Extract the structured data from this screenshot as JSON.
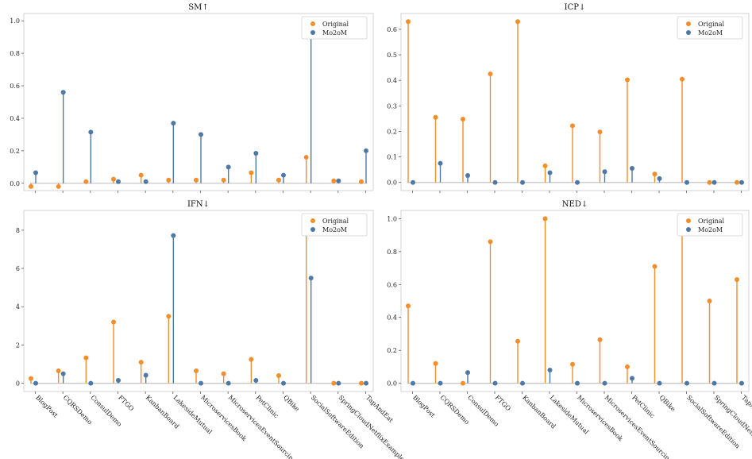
{
  "chart_data": [
    {
      "type": "stem",
      "title": "SM↑",
      "categories": [
        "BlogPost",
        "CQRSDemo",
        "ConsulDemo",
        "FTGO",
        "KanbanBoard",
        "LakesideMutual",
        "MicroservicesBook",
        "MicroservicesEventSourcing",
        "PetClinic",
        "QBike",
        "SocialSoftwareEdition",
        "SpringCloudNetflixExample",
        "TapAndEat"
      ],
      "series": [
        {
          "name": "Original",
          "color": "#f28e2b",
          "values": [
            -0.02,
            -0.02,
            0.01,
            0.025,
            0.05,
            0.02,
            0.02,
            0.02,
            0.065,
            0.02,
            0.16,
            0.015,
            0.01
          ]
        },
        {
          "name": "Mo2oM",
          "color": "#4e79a7",
          "values": [
            0.065,
            0.56,
            0.315,
            0.01,
            0.01,
            0.37,
            0.3,
            0.1,
            0.185,
            0.05,
            1.0,
            0.015,
            0.2
          ]
        }
      ],
      "ylim": [
        -0.045,
        1.045
      ],
      "yticks": [
        "0.0",
        "0.2",
        "0.4",
        "0.6",
        "0.8",
        "1.0"
      ],
      "legend": "top-right",
      "show_xlabels": false
    },
    {
      "type": "stem",
      "title": "ICP↓",
      "categories": [
        "BlogPost",
        "CQRSDemo",
        "ConsulDemo",
        "FTGO",
        "KanbanBoard",
        "LakesideMutual",
        "MicroservicesBook",
        "MicroservicesEventSourcing",
        "PetClinic",
        "QBike",
        "SocialSoftwareEdition",
        "SpringCloudNetflixExample",
        "TapAndEat"
      ],
      "series": [
        {
          "name": "Original",
          "color": "#f28e2b",
          "values": [
            0.63,
            0.255,
            0.248,
            0.425,
            0.63,
            0.065,
            0.222,
            0.198,
            0.402,
            0.033,
            0.405,
            0.0,
            0.0
          ]
        },
        {
          "name": "Mo2oM",
          "color": "#4e79a7",
          "values": [
            0.0,
            0.075,
            0.027,
            0.0,
            0.0,
            0.038,
            0.0,
            0.042,
            0.055,
            0.015,
            0.0,
            0.0,
            0.0
          ]
        }
      ],
      "ylim": [
        -0.032,
        0.662
      ],
      "yticks": [
        "0.0",
        "0.1",
        "0.2",
        "0.3",
        "0.4",
        "0.5",
        "0.6"
      ],
      "legend": "top-right",
      "show_xlabels": false
    },
    {
      "type": "stem",
      "title": "IFN↓",
      "categories": [
        "BlogPost",
        "CQRSDemo",
        "ConsulDemo",
        "FTGO",
        "KanbanBoard",
        "LakesideMutual",
        "MicroservicesBook",
        "MicroservicesEventSourcing",
        "PetClinic",
        "QBike",
        "SocialSoftwareEdition",
        "SpringCloudNetflixExample",
        "TapAndEat"
      ],
      "series": [
        {
          "name": "Original",
          "color": "#f28e2b",
          "values": [
            0.25,
            0.65,
            1.33,
            3.2,
            1.1,
            3.5,
            0.65,
            0.5,
            1.25,
            0.4,
            8.6,
            0.0,
            0.0
          ]
        },
        {
          "name": "Mo2oM",
          "color": "#4e79a7",
          "values": [
            0.0,
            0.5,
            0.0,
            0.15,
            0.42,
            7.72,
            0.0,
            0.0,
            0.15,
            0.0,
            5.5,
            0.0,
            0.0
          ]
        }
      ],
      "ylim": [
        -0.43,
        9.03
      ],
      "yticks": [
        "0",
        "2",
        "4",
        "6",
        "8"
      ],
      "legend": "top-right",
      "show_xlabels": true
    },
    {
      "type": "stem",
      "title": "NED↓",
      "categories": [
        "BlogPost",
        "CQRSDemo",
        "ConsulDemo",
        "FTGO",
        "KanbanBoard",
        "LakesideMutual",
        "MicroservicesBook",
        "MicroservicesEventSourcing",
        "PetClinic",
        "QBike",
        "SocialSoftwareEdition",
        "SpringCloudNetflixExample",
        "TapAndEat"
      ],
      "series": [
        {
          "name": "Original",
          "color": "#f28e2b",
          "values": [
            0.47,
            0.12,
            0.0,
            0.86,
            0.255,
            1.0,
            0.115,
            0.265,
            0.1,
            0.71,
            0.925,
            0.5,
            0.63
          ]
        },
        {
          "name": "Mo2oM",
          "color": "#4e79a7",
          "values": [
            0.0,
            0.0,
            0.065,
            0.0,
            0.0,
            0.08,
            0.0,
            0.0,
            0.03,
            0.0,
            0.0,
            0.0,
            0.0
          ]
        }
      ],
      "ylim": [
        -0.05,
        1.05
      ],
      "yticks": [
        "0.0",
        "0.2",
        "0.4",
        "0.6",
        "0.8",
        "1.0"
      ],
      "legend": "top-right",
      "show_xlabels": true
    }
  ]
}
